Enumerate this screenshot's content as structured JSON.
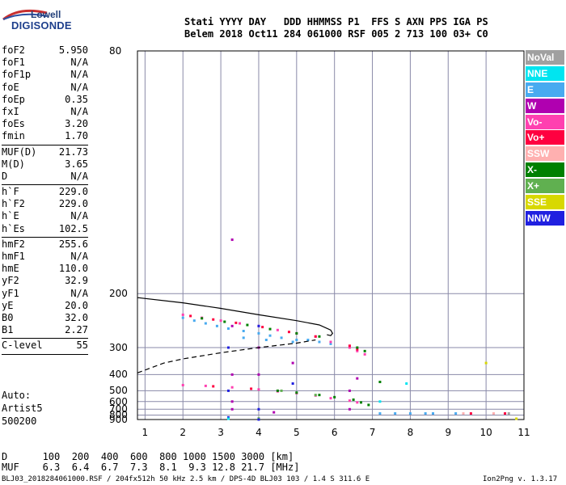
{
  "logo": {
    "line1": "Lowell",
    "line2": "DIGISONDE"
  },
  "header": {
    "line1": "Stati YYYY DAY   DDD HHMMSS P1  FFS S AXN PPS IGA PS",
    "line2": "Belem 2018 Oct11 284 061000 RSF 005 2 713 100 03+ C0"
  },
  "params": [
    {
      "name": "foF2",
      "value": "5.950"
    },
    {
      "name": "foF1",
      "value": "N/A"
    },
    {
      "name": "foF1p",
      "value": "N/A"
    },
    {
      "name": "foE",
      "value": "N/A"
    },
    {
      "name": "foEp",
      "value": "0.35"
    },
    {
      "name": "fxI",
      "value": "N/A"
    },
    {
      "name": "foEs",
      "value": "3.20"
    },
    {
      "name": "fmin",
      "value": "1.70"
    },
    {
      "sep": true
    },
    {
      "name": "MUF(D)",
      "value": "21.73"
    },
    {
      "name": "M(D)",
      "value": "3.65"
    },
    {
      "name": "D",
      "value": "N/A"
    },
    {
      "sep": true
    },
    {
      "name": "h`F",
      "value": "229.0"
    },
    {
      "name": "h`F2",
      "value": "229.0"
    },
    {
      "name": "h`E",
      "value": "N/A"
    },
    {
      "name": "h`Es",
      "value": "102.5"
    },
    {
      "sep": true
    },
    {
      "name": "hmF2",
      "value": "255.6"
    },
    {
      "name": "hmF1",
      "value": "N/A"
    },
    {
      "name": "hmE",
      "value": "110.0"
    },
    {
      "name": "yF2",
      "value": "32.9"
    },
    {
      "name": "yF1",
      "value": "N/A"
    },
    {
      "name": "yE",
      "value": "20.0"
    },
    {
      "name": "B0",
      "value": "32.0"
    },
    {
      "name": "B1",
      "value": "2.27"
    },
    {
      "sep": true
    },
    {
      "name": "C-level",
      "value": "55"
    },
    {
      "sep": true
    }
  ],
  "auto": {
    "line1": "Auto:",
    "line2": "Artist5",
    "line3": "500200"
  },
  "legend": [
    {
      "label": "NoVal",
      "color": "#a0a0a0"
    },
    {
      "label": "NNE",
      "color": "#00e5f0"
    },
    {
      "label": "E",
      "color": "#48aaf0"
    },
    {
      "label": "W",
      "color": "#b000b0"
    },
    {
      "label": "Vo-",
      "color": "#ff40b0"
    },
    {
      "label": "Vo+",
      "color": "#ff0040"
    },
    {
      "label": "SSW",
      "color": "#ffb0b0"
    },
    {
      "label": "X-",
      "color": "#008000"
    },
    {
      "label": "X+",
      "color": "#60b050"
    },
    {
      "label": "SSE",
      "color": "#d8d800"
    },
    {
      "label": "NNW",
      "color": "#2020e0"
    }
  ],
  "footer": {
    "d_line": "D      100  200  400  600  800 1000 1500 3000 [km]",
    "muf_line": "MUF    6.3  6.4  6.7  7.3  8.1  9.3 12.8 21.7 [MHz]",
    "info": "BLJ03_2018284061000.RSF / 204fx512h 50 kHz 2.5 km / DPS-4D BLJ03 103 / 1.4 S 311.6 E",
    "version": "Ion2Png v. 1.3.17"
  },
  "chart_data": {
    "type": "scatter",
    "title": "",
    "xlabel": "",
    "ylabel": "",
    "x_ticks": [
      1,
      2,
      3,
      4,
      5,
      6,
      7,
      8,
      9,
      10,
      11
    ],
    "y_ticks": [
      80,
      200,
      300,
      400,
      500,
      600,
      700,
      800,
      900
    ],
    "xlim": [
      0.8,
      11.0
    ],
    "ylim": [
      80,
      900
    ],
    "grid": true,
    "legend_position": "right",
    "y_scale": "reciprocal",
    "series": [
      {
        "name": "E",
        "color": "#48aaf0",
        "points": [
          [
            2.0,
            235
          ],
          [
            2.3,
            240
          ],
          [
            2.6,
            245
          ],
          [
            2.9,
            250
          ],
          [
            3.2,
            255
          ],
          [
            3.6,
            260
          ],
          [
            4.0,
            265
          ],
          [
            4.3,
            270
          ],
          [
            4.6,
            275
          ],
          [
            5.0,
            280
          ],
          [
            5.3,
            280
          ],
          [
            5.6,
            285
          ],
          [
            5.9,
            290
          ],
          [
            3.6,
            275
          ],
          [
            4.2,
            280
          ],
          [
            4.9,
            285
          ],
          [
            7.2,
            770
          ],
          [
            7.6,
            770
          ],
          [
            8.0,
            770
          ],
          [
            8.4,
            770
          ],
          [
            8.6,
            770
          ],
          [
            9.2,
            770
          ]
        ]
      },
      {
        "name": "Vo-",
        "color": "#ff40b0",
        "points": [
          [
            2.0,
            230
          ],
          [
            2.5,
            235
          ],
          [
            3.0,
            240
          ],
          [
            3.5,
            245
          ],
          [
            4.0,
            250
          ],
          [
            4.5,
            258
          ],
          [
            5.0,
            265
          ],
          [
            5.5,
            272
          ],
          [
            5.9,
            285
          ],
          [
            2.0,
            460
          ],
          [
            2.6,
            465
          ],
          [
            3.3,
            475
          ],
          [
            4.0,
            490
          ],
          [
            4.5,
            505
          ],
          [
            5.0,
            520
          ],
          [
            5.5,
            540
          ],
          [
            5.9,
            565
          ],
          [
            6.4,
            590
          ],
          [
            6.6,
            610
          ],
          [
            6.4,
            300
          ],
          [
            6.6,
            310
          ],
          [
            6.8,
            320
          ]
        ]
      },
      {
        "name": "Vo+",
        "color": "#ff0040",
        "points": [
          [
            2.2,
            232
          ],
          [
            2.8,
            238
          ],
          [
            3.4,
            244
          ],
          [
            4.1,
            252
          ],
          [
            4.8,
            262
          ],
          [
            5.5,
            272
          ],
          [
            2.8,
            468
          ],
          [
            3.8,
            485
          ],
          [
            6.4,
            295
          ],
          [
            6.6,
            305
          ],
          [
            9.6,
            770
          ],
          [
            10.5,
            770
          ]
        ]
      },
      {
        "name": "W",
        "color": "#b000b0",
        "points": [
          [
            3.3,
            700
          ],
          [
            3.3,
            600
          ],
          [
            3.3,
            400
          ],
          [
            3.3,
            250
          ],
          [
            3.3,
            150
          ],
          [
            4.0,
            300
          ],
          [
            4.0,
            400
          ],
          [
            4.4,
            750
          ],
          [
            4.9,
            350
          ],
          [
            6.4,
            700
          ],
          [
            6.4,
            500
          ],
          [
            6.6,
            420
          ]
        ]
      },
      {
        "name": "X-",
        "color": "#008000",
        "points": [
          [
            2.5,
            236
          ],
          [
            3.1,
            242
          ],
          [
            3.7,
            248
          ],
          [
            4.3,
            256
          ],
          [
            5.0,
            265
          ],
          [
            5.6,
            272
          ],
          [
            4.5,
            500
          ],
          [
            5.0,
            515
          ],
          [
            5.6,
            535
          ],
          [
            6.0,
            555
          ],
          [
            6.5,
            580
          ],
          [
            6.7,
            610
          ],
          [
            6.9,
            640
          ],
          [
            7.2,
            440
          ],
          [
            6.6,
            300
          ],
          [
            6.8,
            310
          ]
        ]
      },
      {
        "name": "X+",
        "color": "#60b050",
        "points": [
          [
            4.0,
            875
          ],
          [
            4.6,
            500
          ],
          [
            5.5,
            535
          ]
        ]
      },
      {
        "name": "NNW",
        "color": "#2020e0",
        "points": [
          [
            3.2,
            850
          ],
          [
            3.2,
            500
          ],
          [
            3.2,
            300
          ],
          [
            4.0,
            900
          ],
          [
            4.0,
            700
          ],
          [
            4.0,
            250
          ],
          [
            4.9,
            450
          ]
        ]
      },
      {
        "name": "NNE",
        "color": "#00e5f0",
        "points": [
          [
            3.2,
            880
          ],
          [
            7.2,
            600
          ],
          [
            7.9,
            450
          ]
        ]
      },
      {
        "name": "SSE",
        "color": "#d8d800",
        "points": [
          [
            10.0,
            350
          ],
          [
            10.8,
            880
          ]
        ]
      },
      {
        "name": "SSW",
        "color": "#ffb0b0",
        "points": [
          [
            9.4,
            770
          ],
          [
            10.2,
            770
          ]
        ]
      },
      {
        "name": "NoVal",
        "color": "#a0a0a0",
        "points": [
          [
            10.6,
            770
          ]
        ]
      }
    ],
    "profile_solid": [
      [
        0.8,
        205
      ],
      [
        2.0,
        212
      ],
      [
        3.0,
        220
      ],
      [
        4.0,
        230
      ],
      [
        5.0,
        240
      ],
      [
        5.6,
        248
      ],
      [
        5.9,
        258
      ],
      [
        5.95,
        265
      ],
      [
        5.9,
        270
      ],
      [
        5.8,
        268
      ]
    ],
    "profile_dashed": [
      [
        0.8,
        392
      ],
      [
        1.5,
        350
      ],
      [
        2.0,
        335
      ],
      [
        3.0,
        315
      ],
      [
        4.0,
        300
      ],
      [
        5.0,
        288
      ],
      [
        5.5,
        280
      ]
    ]
  }
}
